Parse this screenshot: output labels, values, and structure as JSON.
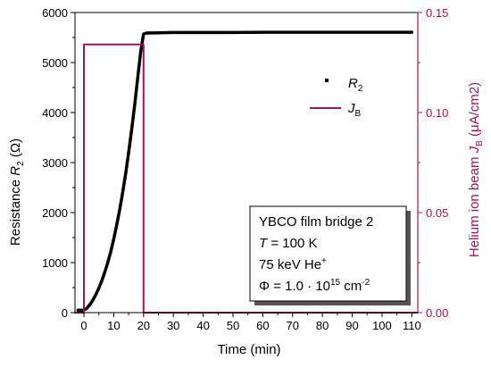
{
  "chart_data": {
    "type": "line",
    "xlabel": "Time  (min)",
    "ylabel_left": {
      "main": "Resistance  ",
      "var": "R",
      "sub": "2",
      "unit": "  (Ω)"
    },
    "ylabel_right": {
      "main": "Helium ion beam  ",
      "var": "J",
      "sub": "B",
      "unit": "  (μA/cm2)"
    },
    "xlim": [
      -3,
      112
    ],
    "ylim_left": [
      0,
      6000
    ],
    "ylim_right": [
      0,
      0.15
    ],
    "x_ticks": [
      "0",
      "10",
      "20",
      "30",
      "40",
      "50",
      "60",
      "70",
      "80",
      "90",
      "100",
      "110"
    ],
    "y_left_ticks": [
      "0",
      "1000",
      "2000",
      "3000",
      "4000",
      "5000",
      "6000"
    ],
    "y_right_ticks": [
      "0.00",
      "0.05",
      "0.10",
      "0.15"
    ],
    "legend": [
      {
        "var": "R",
        "sub": "2",
        "style": "dot",
        "color": "#000000"
      },
      {
        "var": "J",
        "sub": "B",
        "style": "line",
        "color": "#a0145a"
      }
    ],
    "annotation": {
      "line1": "YBCO film bridge 2",
      "line2_var": "T",
      "line2_rest": " = 100 K",
      "line3_main": "75 keV He",
      "line3_sup": "+",
      "line4_main": "Φ = 1.0 · 10",
      "line4_sup": "15",
      "line4_unit": " cm",
      "line4_unit_sup": "-2"
    },
    "series": [
      {
        "name": "R2",
        "axis": "left",
        "color": "#000000",
        "x": [
          -2,
          -1,
          0,
          1,
          2,
          3,
          4,
          5,
          6,
          7,
          8,
          9,
          10,
          11,
          12,
          13,
          14,
          15,
          16,
          17,
          18,
          19,
          20,
          21,
          25,
          30,
          40,
          50,
          60,
          70,
          80,
          90,
          100,
          110
        ],
        "y": [
          50,
          50,
          50,
          90,
          160,
          250,
          360,
          490,
          640,
          810,
          1000,
          1220,
          1470,
          1750,
          2060,
          2400,
          2780,
          3200,
          3650,
          4140,
          4670,
          5200,
          5570,
          5590,
          5595,
          5600,
          5600,
          5600,
          5605,
          5605,
          5605,
          5605,
          5605,
          5605
        ]
      },
      {
        "name": "JB",
        "axis": "right",
        "color": "#a0145a",
        "x": [
          -3,
          0,
          0,
          20,
          20,
          112
        ],
        "y": [
          0,
          0,
          0.134,
          0.134,
          0,
          0
        ]
      }
    ]
  }
}
